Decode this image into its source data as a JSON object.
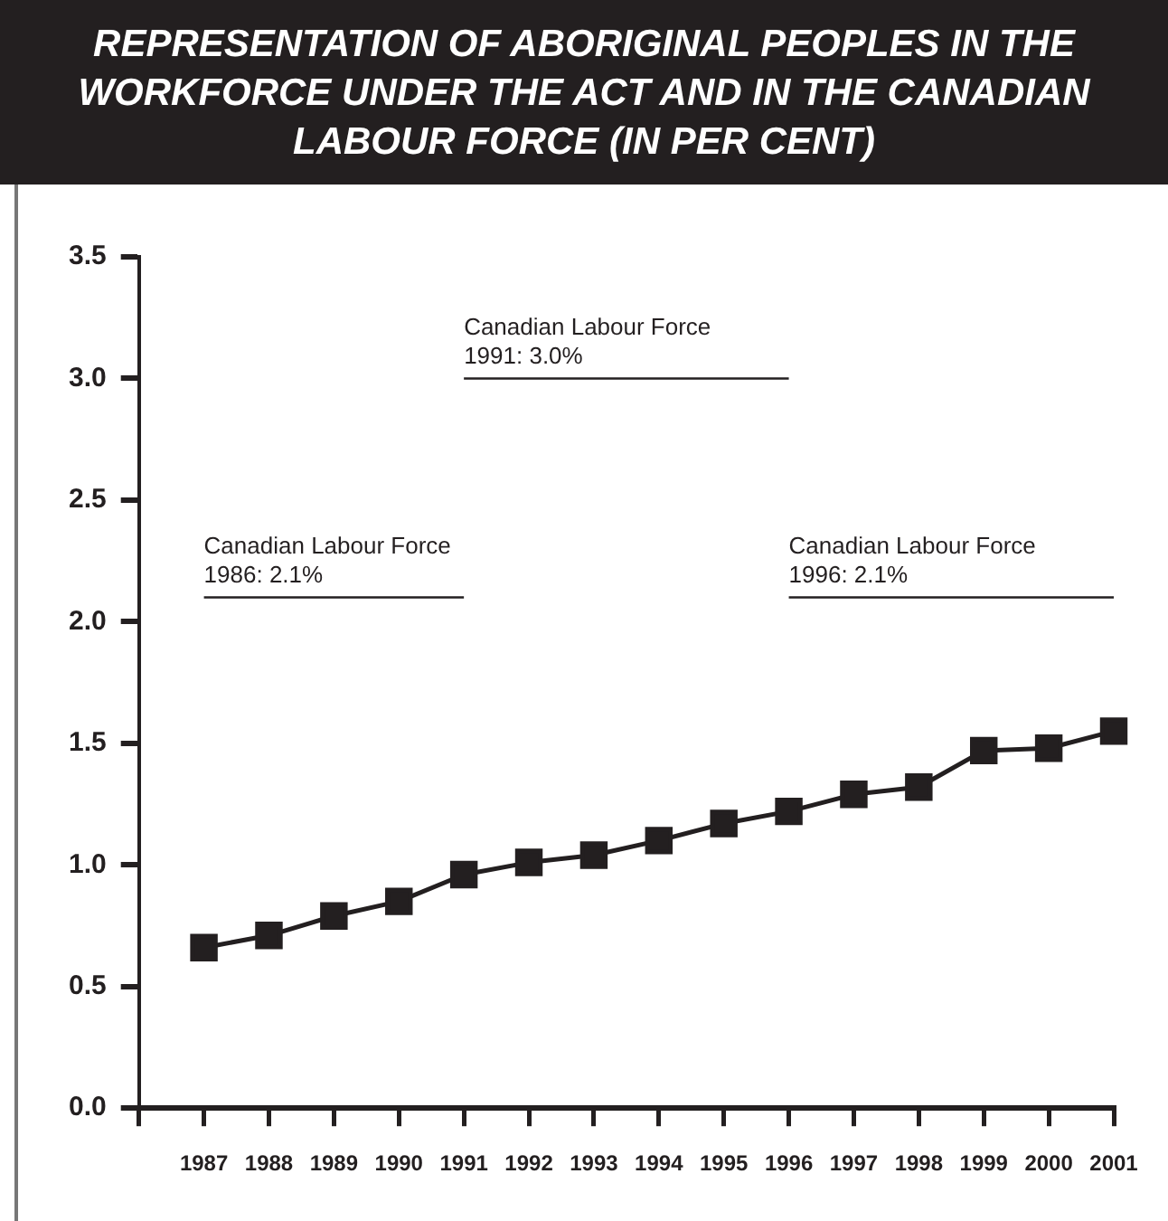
{
  "chart_data": {
    "type": "line",
    "title": "REPRESENTATION OF ABORIGINAL PEOPLES IN THE WORKFORCE UNDER THE ACT AND IN THE CANADIAN LABOUR FORCE (IN PER CENT)",
    "series": [
      {
        "type": "line",
        "color": "#231f20",
        "marker": "square",
        "x": [
          1987,
          1988,
          1989,
          1990,
          1991,
          1992,
          1993,
          1994,
          1995,
          1996,
          1997,
          1998,
          1999,
          2000,
          2001
        ],
        "values": [
          0.66,
          0.71,
          0.79,
          0.85,
          0.96,
          1.01,
          1.04,
          1.1,
          1.17,
          1.22,
          1.29,
          1.32,
          1.47,
          1.48,
          1.55
        ]
      },
      {
        "type": "line",
        "color": "#231f20",
        "marker": "none",
        "x": [
          1987,
          1991
        ],
        "values": [
          2.1,
          2.1
        ]
      },
      {
        "type": "line",
        "color": "#231f20",
        "marker": "none",
        "x": [
          1991,
          1996
        ],
        "values": [
          3.0,
          3.0
        ]
      },
      {
        "type": "line",
        "color": "#231f20",
        "marker": "none",
        "x": [
          1996,
          2001
        ],
        "values": [
          2.1,
          2.1
        ]
      }
    ],
    "annotations": [
      {
        "text": "Canadian Labour Force\n1986: 2.1%",
        "x": 1987,
        "y": 2.1
      },
      {
        "text": "Canadian Labour Force\n1991: 3.0%",
        "x": 1991,
        "y": 3.0
      },
      {
        "text": "Canadian Labour Force\n1996: 2.1%",
        "x": 1996,
        "y": 2.1
      }
    ],
    "xlim": [
      1986,
      2001
    ],
    "xticks": [
      {
        "value": 1986,
        "label": null
      },
      1987,
      1988,
      1989,
      1990,
      1991,
      1992,
      1993,
      1994,
      1995,
      1996,
      1997,
      1998,
      1999,
      2000,
      2001
    ],
    "ylim": [
      0,
      3.5
    ],
    "yticks": [
      {
        "value": 0,
        "label": "0.0"
      },
      0.5,
      {
        "value": 1,
        "label": "1.0"
      },
      1.5,
      {
        "value": 2,
        "label": "2.0"
      },
      2.5,
      {
        "value": 3,
        "label": "3.0"
      },
      3.5
    ],
    "grid": false,
    "legend": false
  }
}
